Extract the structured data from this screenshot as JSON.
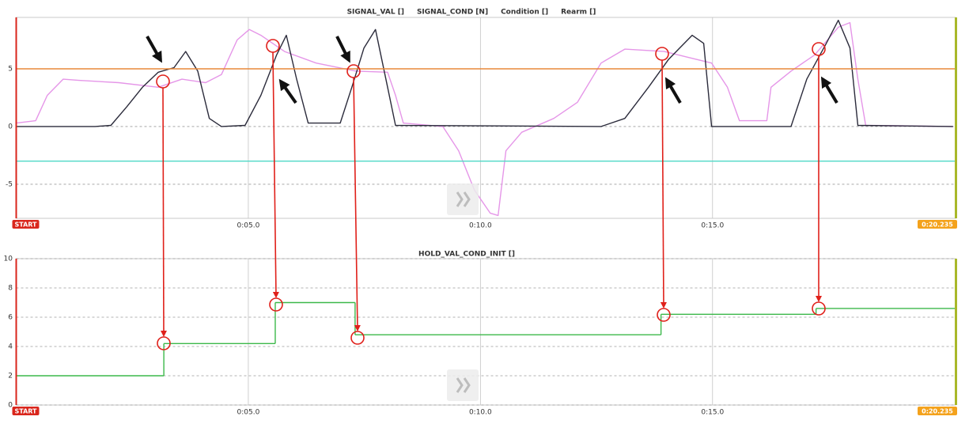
{
  "chart_data": [
    {
      "type": "line",
      "xlim": [
        0,
        20.235
      ],
      "xticks": [
        {
          "value": 0,
          "label": "START"
        },
        {
          "value": 5,
          "label": "0:05.0"
        },
        {
          "value": 10,
          "label": "0:10.0"
        },
        {
          "value": 15,
          "label": "0:15.0"
        },
        {
          "value": 20.235,
          "label": "0:20.235"
        }
      ],
      "ylim": [
        -7.95,
        9.45
      ],
      "yticks": [
        -5,
        0,
        5
      ],
      "grid": true,
      "series": [
        {
          "name": "SIGNAL_VAL []",
          "color": "#e596e8",
          "x": [
            0,
            0.42,
            0.67,
            1.01,
            1.35,
            2.21,
            3.06,
            3.57,
            4.08,
            4.42,
            4.76,
            5.02,
            5.27,
            5.78,
            6.46,
            7.32,
            8.0,
            8.17,
            8.34,
            9.19,
            9.53,
            9.87,
            10.21,
            10.38,
            10.55,
            10.89,
            11.58,
            12.09,
            12.6,
            13.11,
            13.96,
            14.47,
            14.98,
            15.32,
            15.58,
            16.17,
            16.26,
            16.69,
            17.2,
            17.71,
            17.96,
            18.13,
            18.3,
            20.18
          ],
          "values": [
            0.3,
            0.5,
            2.7,
            4.1,
            4.0,
            3.8,
            3.4,
            4.1,
            3.8,
            4.5,
            7.5,
            8.4,
            7.9,
            6.5,
            5.5,
            4.8,
            4.7,
            2.7,
            0.3,
            0,
            -2.1,
            -5.5,
            -7.5,
            -7.7,
            -2.1,
            -0.5,
            0.7,
            2.1,
            5.5,
            6.7,
            6.5,
            6.0,
            5.5,
            3.4,
            0.5,
            0.5,
            3.4,
            4.8,
            6.2,
            8.6,
            9.0,
            4.1,
            0.1,
            0
          ]
        },
        {
          "name": "SIGNAL_COND [N]",
          "color": "#2b2b3b",
          "x": [
            0,
            1.7,
            2.04,
            2.38,
            2.72,
            3.06,
            3.4,
            3.65,
            3.91,
            4.16,
            4.42,
            4.93,
            5.27,
            5.61,
            5.82,
            6.04,
            6.29,
            6.98,
            7.23,
            7.49,
            7.74,
            8.0,
            8.17,
            12.6,
            13.11,
            13.62,
            14.05,
            14.56,
            14.81,
            14.98,
            16.69,
            17.03,
            17.45,
            17.71,
            17.96,
            18.13,
            20.18
          ],
          "values": [
            0,
            0,
            0.1,
            1.7,
            3.4,
            4.7,
            5.1,
            6.5,
            4.8,
            0.7,
            0,
            0.1,
            2.7,
            6.2,
            7.9,
            4.1,
            0.3,
            0.3,
            3.4,
            6.8,
            8.4,
            3.4,
            0.1,
            0,
            0.7,
            3.4,
            5.8,
            7.9,
            7.2,
            0,
            0,
            4.1,
            7.2,
            9.2,
            6.8,
            0.1,
            0
          ]
        },
        {
          "name": "Condition []",
          "color": "#e8883a",
          "x": [
            0,
            20.235
          ],
          "values": [
            5,
            5
          ]
        },
        {
          "name": "Rearm []",
          "color": "#4fd8c6",
          "x": [
            0,
            20.235
          ],
          "values": [
            -3,
            -3
          ]
        }
      ]
    },
    {
      "type": "step",
      "xlim": [
        0,
        20.235
      ],
      "xticks": [
        {
          "value": 0,
          "label": "START"
        },
        {
          "value": 5,
          "label": "0:05.0"
        },
        {
          "value": 10,
          "label": "0:10.0"
        },
        {
          "value": 15,
          "label": "0:15.0"
        },
        {
          "value": 20.235,
          "label": "0:20.235"
        }
      ],
      "ylim": [
        0,
        10
      ],
      "yticks": [
        0,
        2,
        4,
        6,
        8,
        10
      ],
      "grid": true,
      "series": [
        {
          "name": "HOLD_VAL_COND_INIT []",
          "color": "#3cb84a",
          "x": [
            0,
            3.18,
            5.58,
            7.3,
            13.89,
            17.23
          ],
          "values": [
            2.0,
            4.2,
            7.0,
            4.8,
            6.2,
            6.6
          ]
        }
      ]
    }
  ]
}
